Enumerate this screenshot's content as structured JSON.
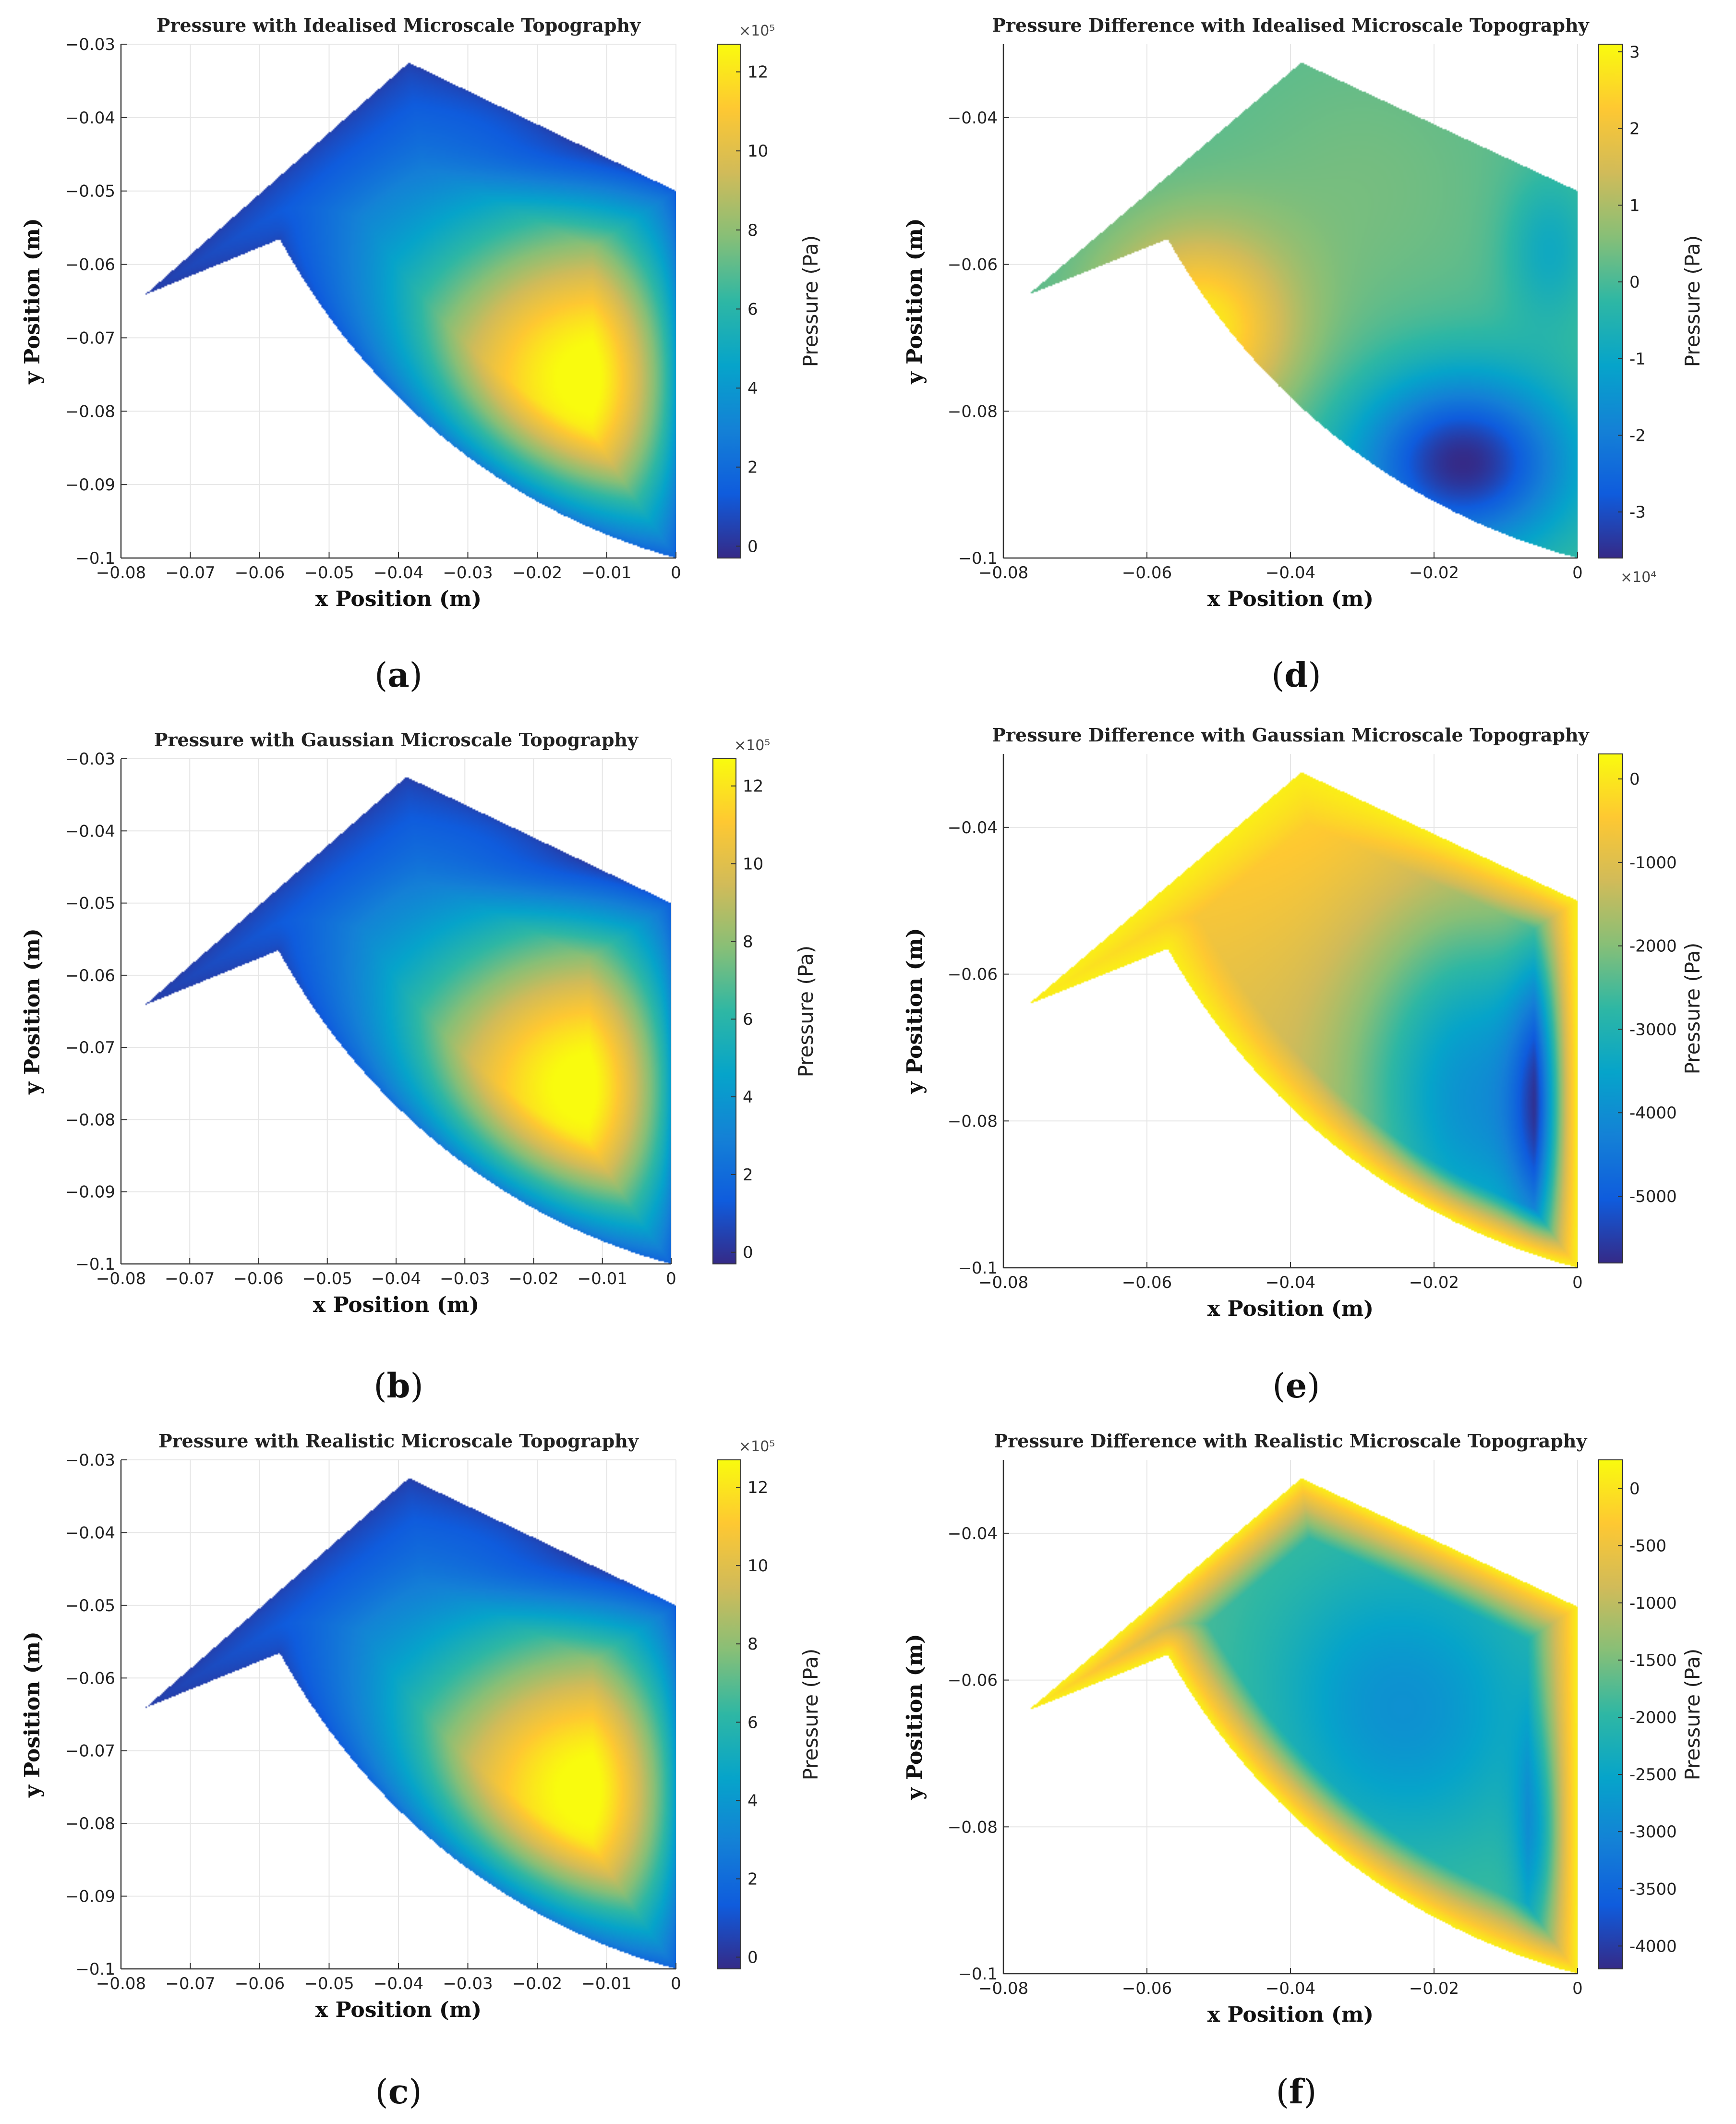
{
  "colors": {
    "parula": [
      "#352a87",
      "#0f5cdd",
      "#1481d6",
      "#06a4ca",
      "#2eb7a4",
      "#87bf77",
      "#d1bb59",
      "#fec832",
      "#f9fb0e"
    ],
    "grid": "#e6e6e6",
    "axis": "#333333"
  },
  "chart_data": [
    {
      "id": "a",
      "type": "heatmap",
      "title": "Pressure with Idealised Microscale Topography",
      "xlabel": "x Position (m)",
      "ylabel": "y Position (m)",
      "xlim": [
        -0.08,
        0
      ],
      "ylim": [
        -0.1,
        -0.03
      ],
      "xticks": [
        -0.08,
        -0.07,
        -0.06,
        -0.05,
        -0.04,
        -0.03,
        -0.02,
        -0.01,
        0
      ],
      "xtick_labels": [
        "−0.08",
        "−0.07",
        "−0.06",
        "−0.05",
        "−0.04",
        "−0.03",
        "−0.02",
        "−0.01",
        "0"
      ],
      "yticks": [
        -0.03,
        -0.04,
        -0.05,
        -0.06,
        -0.07,
        -0.08,
        -0.09,
        -0.1
      ],
      "ytick_labels": [
        "−0.03",
        "−0.04",
        "−0.05",
        "−0.06",
        "−0.07",
        "−0.08",
        "−0.09",
        "−0.1"
      ],
      "colorbar": {
        "label": "Pressure (Pa)",
        "multiplier": "×10⁵",
        "range": [
          -0.3,
          12.7
        ],
        "ticks": [
          0,
          2,
          4,
          6,
          8,
          10,
          12
        ],
        "tick_labels": [
          "0",
          "2",
          "4",
          "6",
          "8",
          "10",
          "12"
        ]
      },
      "mode": "pressure",
      "sublabel": "a"
    },
    {
      "id": "d",
      "type": "heatmap",
      "title": "Pressure Difference with Idealised Microscale Topography",
      "xlabel": "x Position (m)",
      "ylabel": "y Position (m)",
      "xlim": [
        -0.08,
        0
      ],
      "ylim": [
        -0.1,
        -0.03
      ],
      "xticks": [
        -0.08,
        -0.06,
        -0.04,
        -0.02,
        0
      ],
      "xtick_labels": [
        "−0.08",
        "−0.06",
        "−0.04",
        "−0.02",
        "0"
      ],
      "yticks": [
        -0.04,
        -0.06,
        -0.08,
        -0.1
      ],
      "ytick_labels": [
        "−0.04",
        "−0.06",
        "−0.08",
        "−0.1"
      ],
      "colorbar": {
        "label": "Pressure (Pa)",
        "multiplier": "×10⁴",
        "range": [
          -3.6,
          3.1
        ],
        "ticks": [
          -3,
          -2,
          -1,
          0,
          1,
          2,
          3
        ],
        "tick_labels": [
          "-3",
          "-2",
          "-1",
          "0",
          "1",
          "2",
          "3"
        ]
      },
      "mode": "diffA",
      "sublabel": "d"
    },
    {
      "id": "b",
      "type": "heatmap",
      "title": "Pressure with Gaussian Microscale Topography",
      "xlabel": "x Position (m)",
      "ylabel": "y Position (m)",
      "xlim": [
        -0.08,
        0
      ],
      "ylim": [
        -0.1,
        -0.03
      ],
      "xticks": [
        -0.08,
        -0.07,
        -0.06,
        -0.05,
        -0.04,
        -0.03,
        -0.02,
        -0.01,
        0
      ],
      "xtick_labels": [
        "−0.08",
        "−0.07",
        "−0.06",
        "−0.05",
        "−0.04",
        "−0.03",
        "−0.02",
        "−0.01",
        "0"
      ],
      "yticks": [
        -0.03,
        -0.04,
        -0.05,
        -0.06,
        -0.07,
        -0.08,
        -0.09,
        -0.1
      ],
      "ytick_labels": [
        "−0.03",
        "−0.04",
        "−0.05",
        "−0.06",
        "−0.07",
        "−0.08",
        "−0.09",
        "−0.1"
      ],
      "colorbar": {
        "label": "Pressure (Pa)",
        "multiplier": "×10⁵",
        "range": [
          -0.3,
          12.7
        ],
        "ticks": [
          0,
          2,
          4,
          6,
          8,
          10,
          12
        ],
        "tick_labels": [
          "0",
          "2",
          "4",
          "6",
          "8",
          "10",
          "12"
        ]
      },
      "mode": "pressure",
      "sublabel": "b"
    },
    {
      "id": "e",
      "type": "heatmap",
      "title": "Pressure Difference with Gaussian Microscale Topography",
      "xlabel": "x Position (m)",
      "ylabel": "y Position (m)",
      "xlim": [
        -0.08,
        0
      ],
      "ylim": [
        -0.1,
        -0.03
      ],
      "xticks": [
        -0.08,
        -0.06,
        -0.04,
        -0.02,
        0
      ],
      "xtick_labels": [
        "−0.08",
        "−0.06",
        "−0.04",
        "−0.02",
        "0"
      ],
      "yticks": [
        -0.04,
        -0.06,
        -0.08,
        -0.1
      ],
      "ytick_labels": [
        "−0.04",
        "−0.06",
        "−0.08",
        "−0.1"
      ],
      "colorbar": {
        "label": "Pressure (Pa)",
        "multiplier": "",
        "range": [
          -5800,
          300
        ],
        "ticks": [
          -5000,
          -4000,
          -3000,
          -2000,
          -1000,
          0
        ],
        "tick_labels": [
          "-5000",
          "-4000",
          "-3000",
          "-2000",
          "-1000",
          "0"
        ]
      },
      "mode": "diffB",
      "sublabel": "e"
    },
    {
      "id": "c",
      "type": "heatmap",
      "title": "Pressure with Realistic Microscale Topography",
      "xlabel": "x Position (m)",
      "ylabel": "y Position (m)",
      "xlim": [
        -0.08,
        0
      ],
      "ylim": [
        -0.1,
        -0.03
      ],
      "xticks": [
        -0.08,
        -0.07,
        -0.06,
        -0.05,
        -0.04,
        -0.03,
        -0.02,
        -0.01,
        0
      ],
      "xtick_labels": [
        "−0.08",
        "−0.07",
        "−0.06",
        "−0.05",
        "−0.04",
        "−0.03",
        "−0.02",
        "−0.01",
        "0"
      ],
      "yticks": [
        -0.03,
        -0.04,
        -0.05,
        -0.06,
        -0.07,
        -0.08,
        -0.09,
        -0.1
      ],
      "ytick_labels": [
        "−0.03",
        "−0.04",
        "−0.05",
        "−0.06",
        "−0.07",
        "−0.08",
        "−0.09",
        "−0.1"
      ],
      "colorbar": {
        "label": "Pressure (Pa)",
        "multiplier": "×10⁵",
        "range": [
          -0.3,
          12.7
        ],
        "ticks": [
          0,
          2,
          4,
          6,
          8,
          10,
          12
        ],
        "tick_labels": [
          "0",
          "2",
          "4",
          "6",
          "8",
          "10",
          "12"
        ]
      },
      "mode": "pressure",
      "sublabel": "c"
    },
    {
      "id": "f",
      "type": "heatmap",
      "title": "Pressure Difference with Realistic Microscale Topography",
      "xlabel": "x Position (m)",
      "ylabel": "y Position (m)",
      "xlim": [
        -0.08,
        0
      ],
      "ylim": [
        -0.1,
        -0.03
      ],
      "xticks": [
        -0.08,
        -0.06,
        -0.04,
        -0.02,
        0
      ],
      "xtick_labels": [
        "−0.08",
        "−0.06",
        "−0.04",
        "−0.02",
        "0"
      ],
      "yticks": [
        -0.04,
        -0.06,
        -0.08,
        -0.1
      ],
      "ytick_labels": [
        "−0.04",
        "−0.06",
        "−0.08",
        "−0.1"
      ],
      "colorbar": {
        "label": "Pressure (Pa)",
        "multiplier": "",
        "range": [
          -4200,
          250
        ],
        "ticks": [
          -4000,
          -3500,
          -3000,
          -2500,
          -2000,
          -1500,
          -1000,
          -500,
          0
        ],
        "tick_labels": [
          "-4000",
          "-3500",
          "-3000",
          "-2500",
          "-2000",
          "-1500",
          "-1000",
          "-500",
          "0"
        ]
      },
      "mode": "diffC",
      "sublabel": "f"
    }
  ]
}
